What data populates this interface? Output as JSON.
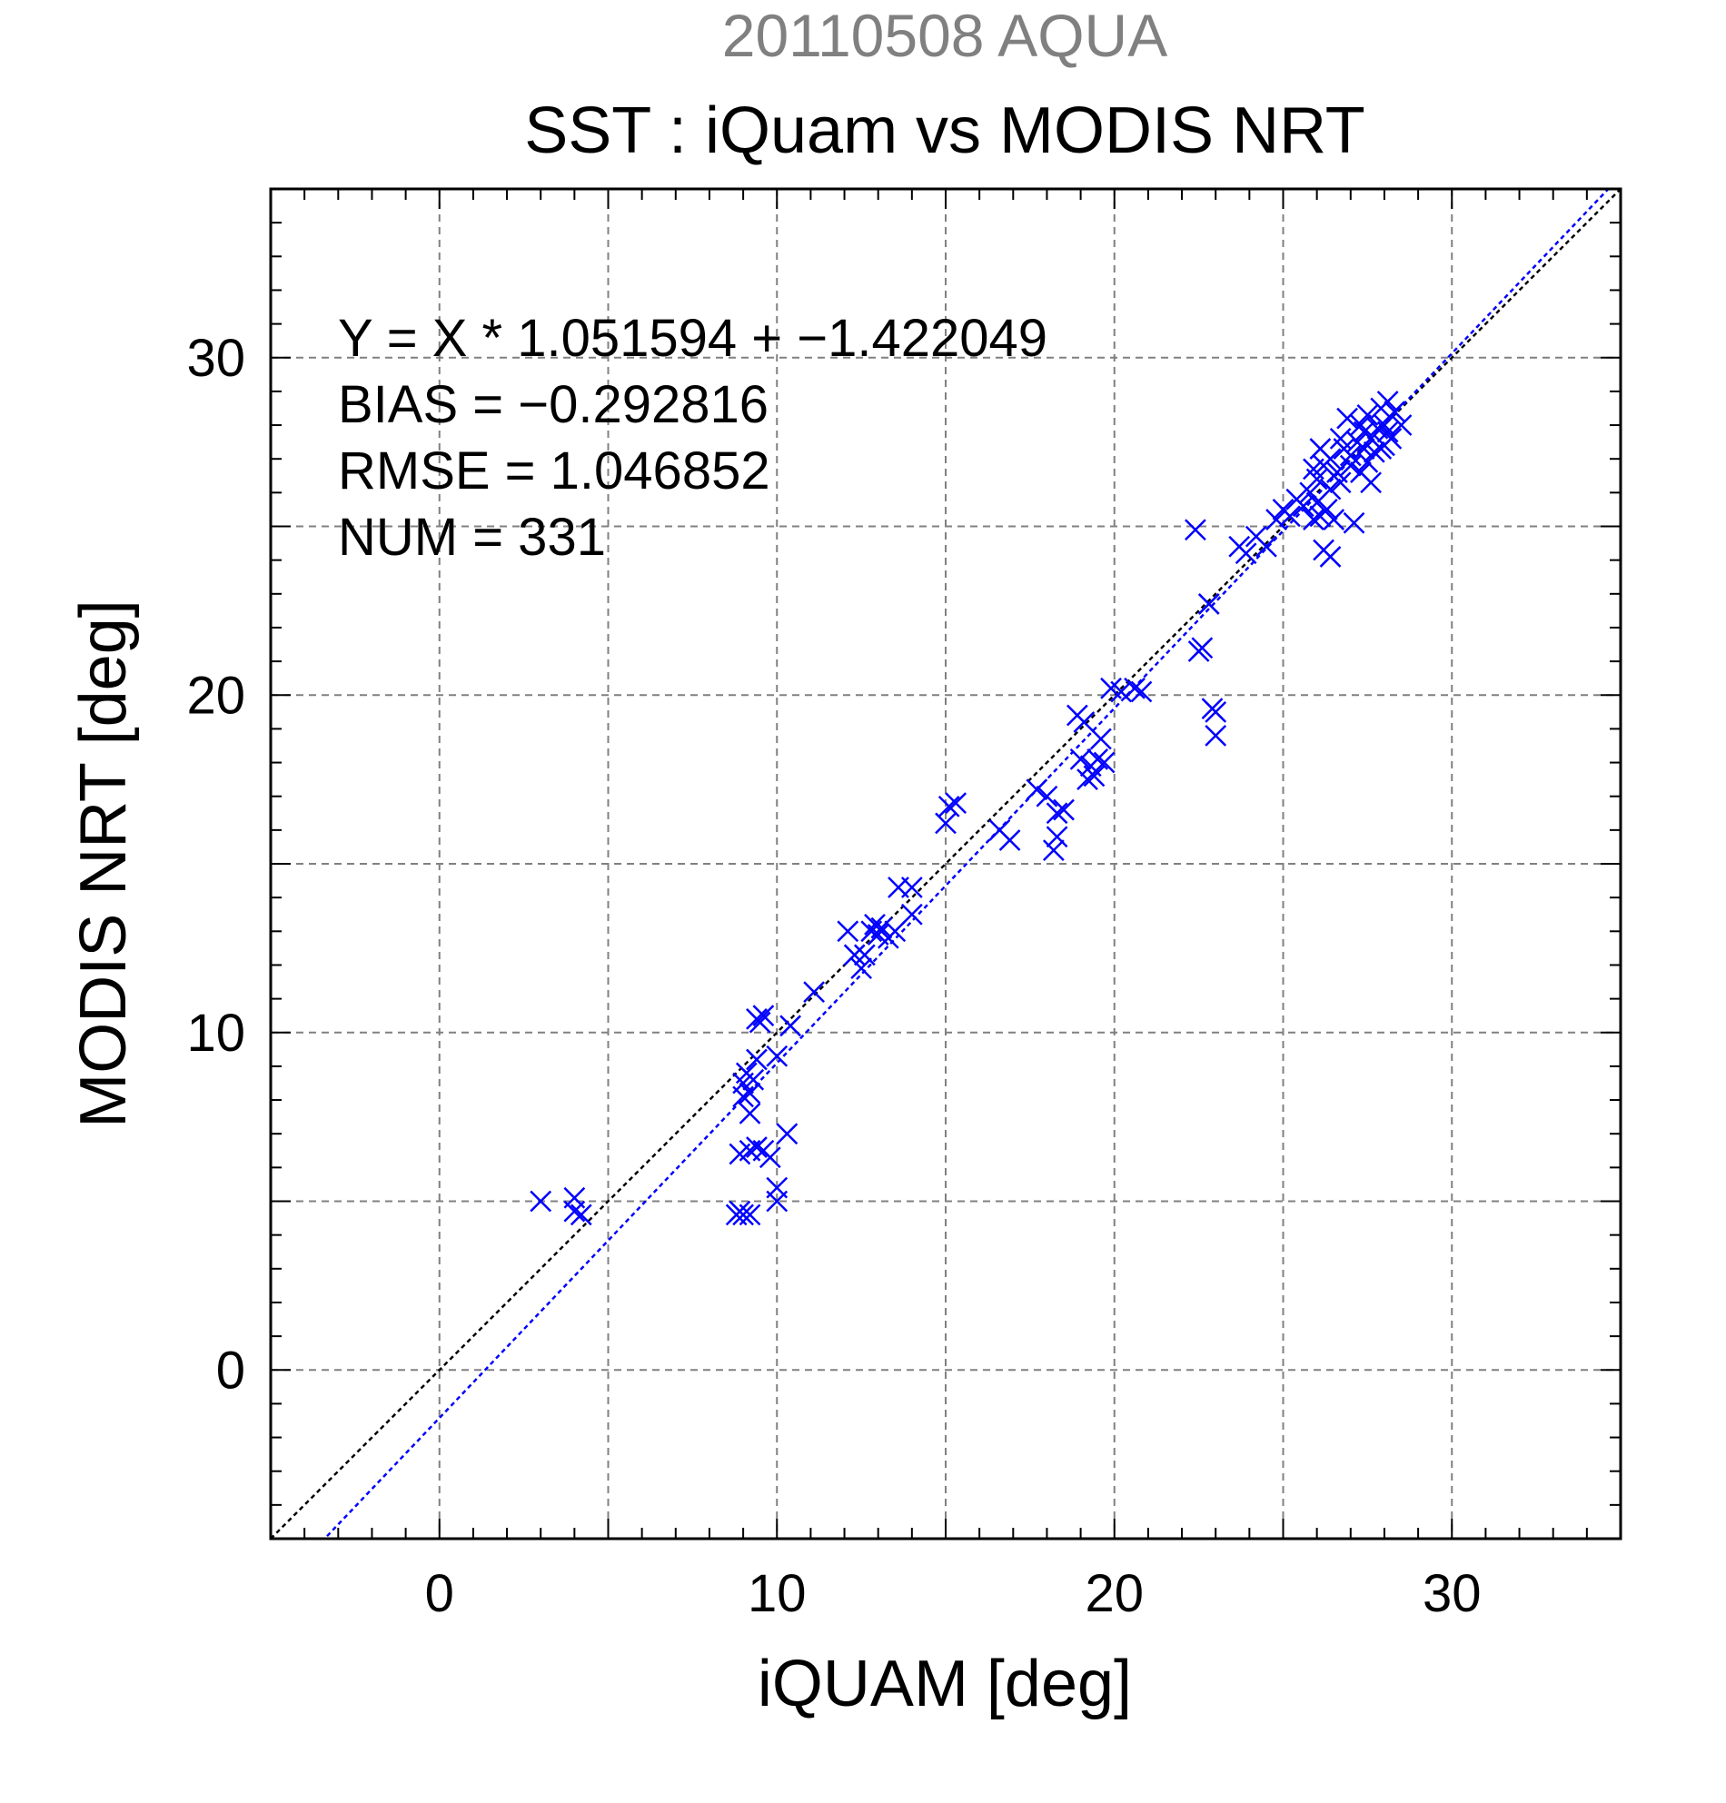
{
  "chart_data": {
    "type": "scatter",
    "title": "SST : iQuam vs MODIS NRT",
    "subtitle": "20110508 AQUA",
    "xlabel": "iQUAM [deg]",
    "ylabel": "MODIS NRT [deg]",
    "xlim": [
      -5,
      35
    ],
    "ylim": [
      -5,
      35
    ],
    "x_ticks": [
      0,
      10,
      20,
      30
    ],
    "y_ticks": [
      0,
      10,
      20,
      30
    ],
    "x_tick_labels": [
      "0",
      "10",
      "20",
      "30"
    ],
    "y_tick_labels": [
      "0",
      "10",
      "20",
      "30"
    ],
    "grid": true,
    "stats": [
      "Y = X * 1.051594 + −1.422049",
      "BIAS = −0.292816",
      "RMSE = 1.046852",
      "NUM = 331"
    ],
    "colors": {
      "points": "#0000ff",
      "fit_line": "#0000ff",
      "identity_line": "#000000",
      "grid": "#808080",
      "subtitle": "#808080"
    },
    "lines": [
      {
        "kind": "identity",
        "slope": 1,
        "intercept": 0
      },
      {
        "kind": "fit",
        "slope": 1.051594,
        "intercept": -1.422049
      }
    ],
    "series": [
      {
        "marker": "x",
        "points": [
          [
            3.0,
            5.0
          ],
          [
            4.0,
            5.1
          ],
          [
            4.0,
            4.7
          ],
          [
            4.2,
            4.6
          ],
          [
            8.8,
            4.6
          ],
          [
            9.0,
            4.6
          ],
          [
            9.2,
            4.6
          ],
          [
            8.9,
            4.7
          ],
          [
            9.2,
            6.5
          ],
          [
            9.4,
            6.6
          ],
          [
            9.6,
            6.5
          ],
          [
            9.8,
            6.3
          ],
          [
            8.9,
            6.4
          ],
          [
            10.0,
            5.0
          ],
          [
            10.0,
            5.4
          ],
          [
            10.3,
            7.0
          ],
          [
            9.2,
            7.6
          ],
          [
            9.2,
            8.2
          ],
          [
            9.0,
            8.5
          ],
          [
            9.3,
            8.6
          ],
          [
            9.1,
            8.8
          ],
          [
            9.4,
            9.2
          ],
          [
            9.0,
            8.1
          ],
          [
            10.0,
            9.3
          ],
          [
            9.4,
            10.4
          ],
          [
            9.6,
            10.5
          ],
          [
            9.5,
            10.3
          ],
          [
            10.4,
            10.2
          ],
          [
            11.1,
            11.2
          ],
          [
            12.1,
            13.0
          ],
          [
            12.3,
            12.3
          ],
          [
            12.5,
            11.9
          ],
          [
            12.6,
            12.3
          ],
          [
            12.8,
            13.0
          ],
          [
            13.0,
            12.9
          ],
          [
            12.9,
            13.2
          ],
          [
            13.1,
            13.1
          ],
          [
            13.3,
            12.8
          ],
          [
            13.5,
            13.0
          ],
          [
            13.6,
            14.3
          ],
          [
            14.0,
            14.3
          ],
          [
            14.0,
            13.5
          ],
          [
            15.0,
            16.2
          ],
          [
            15.1,
            16.7
          ],
          [
            15.3,
            16.8
          ],
          [
            16.6,
            16.0
          ],
          [
            16.9,
            15.7
          ],
          [
            17.7,
            17.2
          ],
          [
            18.0,
            17.0
          ],
          [
            18.3,
            16.5
          ],
          [
            18.5,
            16.6
          ],
          [
            18.3,
            15.8
          ],
          [
            18.2,
            15.4
          ],
          [
            18.9,
            19.4
          ],
          [
            19.1,
            19.2
          ],
          [
            19.0,
            18.1
          ],
          [
            19.3,
            17.9
          ],
          [
            19.5,
            18.1
          ],
          [
            19.4,
            17.6
          ],
          [
            19.2,
            17.5
          ],
          [
            19.7,
            18.0
          ],
          [
            19.6,
            18.7
          ],
          [
            19.9,
            20.2
          ],
          [
            20.2,
            20.1
          ],
          [
            20.6,
            20.2
          ],
          [
            20.8,
            20.1
          ],
          [
            22.4,
            24.9
          ],
          [
            22.6,
            21.4
          ],
          [
            22.5,
            21.3
          ],
          [
            22.8,
            22.7
          ],
          [
            22.9,
            19.6
          ],
          [
            23.0,
            19.5
          ],
          [
            23.0,
            18.8
          ],
          [
            23.7,
            24.4
          ],
          [
            23.9,
            24.2
          ],
          [
            24.2,
            24.7
          ],
          [
            24.5,
            24.4
          ],
          [
            24.8,
            25.2
          ],
          [
            25.0,
            25.5
          ],
          [
            25.2,
            25.3
          ],
          [
            25.4,
            25.8
          ],
          [
            25.6,
            25.6
          ],
          [
            25.8,
            26.0
          ],
          [
            26.0,
            25.7
          ],
          [
            25.9,
            25.2
          ],
          [
            26.1,
            25.3
          ],
          [
            26.3,
            25.5
          ],
          [
            26.5,
            25.2
          ],
          [
            26.2,
            24.3
          ],
          [
            26.4,
            24.1
          ],
          [
            26.0,
            26.4
          ],
          [
            26.2,
            26.8
          ],
          [
            26.4,
            27.0
          ],
          [
            26.6,
            26.6
          ],
          [
            26.8,
            27.3
          ],
          [
            27.0,
            27.1
          ],
          [
            27.2,
            27.5
          ],
          [
            27.4,
            27.8
          ],
          [
            27.6,
            27.6
          ],
          [
            27.8,
            27.9
          ],
          [
            28.0,
            28.0
          ],
          [
            27.9,
            28.5
          ],
          [
            28.1,
            28.7
          ],
          [
            28.3,
            28.4
          ],
          [
            28.5,
            28.0
          ],
          [
            28.2,
            27.6
          ],
          [
            27.7,
            27.2
          ],
          [
            27.5,
            26.9
          ],
          [
            27.3,
            26.6
          ],
          [
            27.6,
            26.3
          ],
          [
            27.1,
            25.1
          ],
          [
            27.9,
            27.3
          ],
          [
            28.1,
            27.8
          ],
          [
            27.0,
            26.8
          ],
          [
            26.7,
            27.6
          ],
          [
            26.9,
            28.2
          ],
          [
            27.3,
            28.0
          ],
          [
            27.5,
            28.3
          ],
          [
            28.0,
            27.4
          ],
          [
            26.1,
            27.3
          ],
          [
            25.9,
            26.7
          ],
          [
            26.4,
            26.1
          ],
          [
            26.7,
            26.3
          ],
          [
            27.4,
            27.3
          ]
        ]
      }
    ]
  }
}
